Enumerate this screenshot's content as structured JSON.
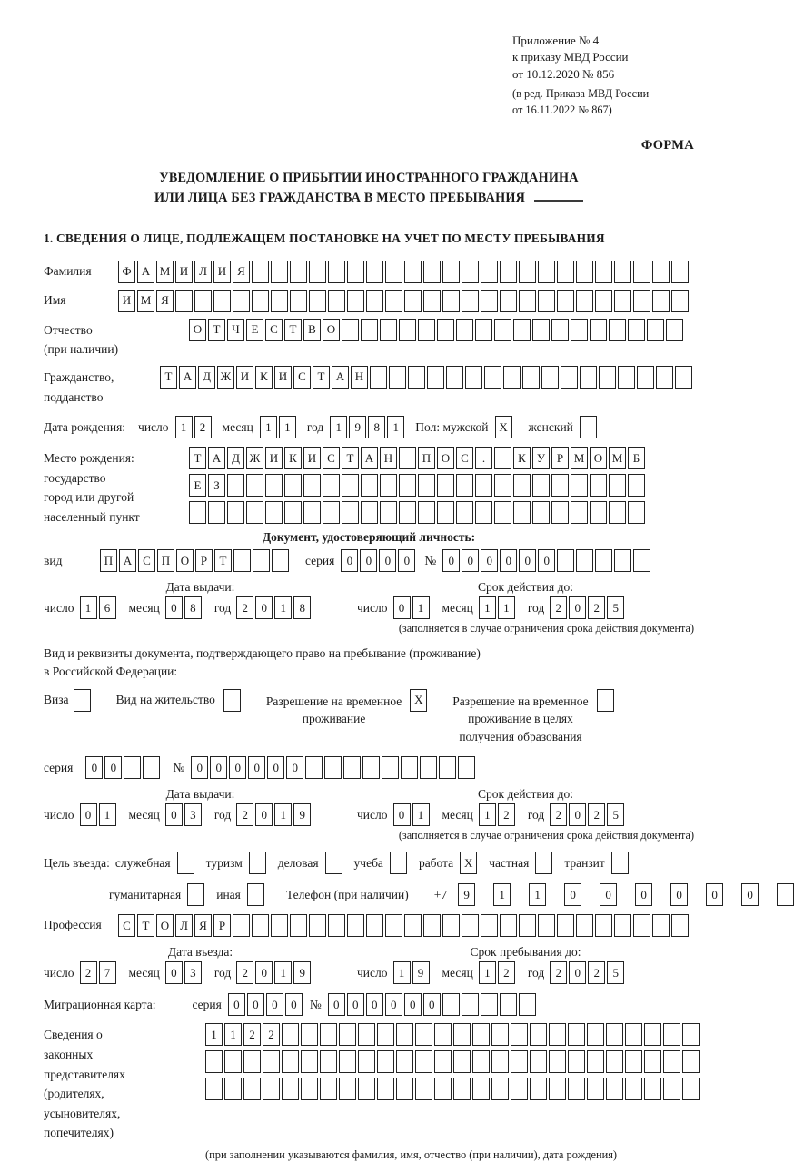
{
  "header": {
    "lines": [
      "Приложение № 4",
      "к приказу МВД России",
      "от 10.12.2020 № 856"
    ],
    "sub_lines": [
      "(в ред. Приказа МВД России",
      "от 16.11.2022 № 867)"
    ],
    "form_label": "ФОРМА"
  },
  "title": {
    "line1": "УВЕДОМЛЕНИЕ О ПРИБЫТИИ ИНОСТРАННОГО ГРАЖДАНИНА",
    "line2": "ИЛИ ЛИЦА БЕЗ ГРАЖДАНСТВА В МЕСТО ПРЕБЫВАНИЯ"
  },
  "section1_heading": "1. СВЕДЕНИЯ О ЛИЦЕ, ПОДЛЕЖАЩЕМ ПОСТАНОВКЕ НА УЧЕТ ПО МЕСТУ ПРЕБЫВАНИЯ",
  "labels": {
    "surname": "Фамилия",
    "given_name": "Имя",
    "patronymic_l1": "Отчество",
    "patronymic_l2": "(при наличии)",
    "citizenship_l1": "Гражданство,",
    "citizenship_l2": "подданство",
    "birth_date": "Дата рождения:",
    "chislo": "число",
    "mesyac": "месяц",
    "god": "год",
    "gender_male": "Пол: мужской",
    "gender_female": "женский",
    "birthplace_l1": "Место рождения:",
    "birthplace_l2": "государство",
    "birthplace_l3": "город или другой",
    "birthplace_l4": "населенный пункт",
    "doc_heading": "Документ, удостоверяющий личность:",
    "vid": "вид",
    "seriya": "серия",
    "no": "№",
    "data_vydachi": "Дата выдачи:",
    "srok_deystviya": "Срок действия до:",
    "note_restriction": "(заполняется в случае ограничения срока действия документа)",
    "right_doc_l1": "Вид и реквизиты документа, подтверждающего право на пребывание (проживание)",
    "right_doc_l2": "в Российской Федерации:",
    "purpose_prefix": "Цель въезда:",
    "telefon": "Телефон (при наличии)",
    "plus7": "+7",
    "profession": "Профессия",
    "data_vezda": "Дата въезда:",
    "srok_prebyvaniya": "Срок пребывания до:",
    "mig_karta": "Миграционная карта:",
    "reps_l1": "Сведения о",
    "reps_l2": "законных",
    "reps_l3": "представителях",
    "reps_l4": "(родителях,",
    "reps_l5": "усыновителях,",
    "reps_l6": "попечителях)",
    "reps_note": "(при заполнении указываются фамилия, имя, отчество (при наличии), дата рождения)"
  },
  "fields": {
    "surname_cells": [
      "Ф",
      "А",
      "М",
      "И",
      "Л",
      "И",
      "Я",
      "",
      "",
      "",
      "",
      "",
      "",
      "",
      "",
      "",
      "",
      "",
      "",
      "",
      "",
      "",
      "",
      "",
      "",
      "",
      "",
      "",
      "",
      ""
    ],
    "given_name_cells": [
      "И",
      "М",
      "Я",
      "",
      "",
      "",
      "",
      "",
      "",
      "",
      "",
      "",
      "",
      "",
      "",
      "",
      "",
      "",
      "",
      "",
      "",
      "",
      "",
      "",
      "",
      "",
      "",
      "",
      "",
      ""
    ],
    "patronymic_cells": [
      "О",
      "Т",
      "Ч",
      "Е",
      "С",
      "Т",
      "В",
      "О",
      "",
      "",
      "",
      "",
      "",
      "",
      "",
      "",
      "",
      "",
      "",
      "",
      "",
      "",
      "",
      "",
      "",
      ""
    ],
    "citizenship_cells": [
      "Т",
      "А",
      "Д",
      "Ж",
      "И",
      "К",
      "И",
      "С",
      "Т",
      "А",
      "Н",
      "",
      "",
      "",
      "",
      "",
      "",
      "",
      "",
      "",
      "",
      "",
      "",
      "",
      "",
      "",
      "",
      ""
    ],
    "birth": {
      "day": [
        "1",
        "2"
      ],
      "month": [
        "1",
        "1"
      ],
      "year": [
        "1",
        "9",
        "8",
        "1"
      ],
      "male": "X",
      "female": ""
    },
    "birthplace_row1": [
      "Т",
      "А",
      "Д",
      "Ж",
      "И",
      "К",
      "И",
      "С",
      "Т",
      "А",
      "Н",
      "",
      "П",
      "О",
      "С",
      ".",
      "",
      "К",
      "У",
      "Р",
      "М",
      "О",
      "М",
      "Б"
    ],
    "birthplace_row2": [
      "Е",
      "З",
      "",
      "",
      "",
      "",
      "",
      "",
      "",
      "",
      "",
      "",
      "",
      "",
      "",
      "",
      "",
      "",
      "",
      "",
      "",
      "",
      "",
      ""
    ],
    "birthplace_row3": [
      "",
      "",
      "",
      "",
      "",
      "",
      "",
      "",
      "",
      "",
      "",
      "",
      "",
      "",
      "",
      "",
      "",
      "",
      "",
      "",
      "",
      "",
      "",
      ""
    ],
    "doc": {
      "type_cells": [
        "П",
        "А",
        "С",
        "П",
        "О",
        "Р",
        "Т",
        "",
        "",
        ""
      ],
      "seriya_cells": [
        "0",
        "0",
        "0",
        "0"
      ],
      "number_cells": [
        "0",
        "0",
        "0",
        "0",
        "0",
        "0",
        "",
        "",
        "",
        "",
        ""
      ],
      "issue_day": [
        "1",
        "6"
      ],
      "issue_month": [
        "0",
        "8"
      ],
      "issue_year": [
        "2",
        "0",
        "1",
        "8"
      ],
      "valid_day": [
        "0",
        "1"
      ],
      "valid_month": [
        "1",
        "1"
      ],
      "valid_year": [
        "2",
        "0",
        "2",
        "5"
      ]
    },
    "residence": {
      "options": [
        {
          "label": "Виза",
          "value": ""
        },
        {
          "label": "Вид на жительство",
          "value": ""
        },
        {
          "lines": [
            "Разрешение на временное",
            "проживание"
          ],
          "value": "X"
        },
        {
          "lines": [
            "Разрешение на временное",
            "проживание в целях",
            "получения образования"
          ],
          "value": ""
        }
      ],
      "seriya_cells": [
        "0",
        "0",
        "",
        ""
      ],
      "number_cells": [
        "0",
        "0",
        "0",
        "0",
        "0",
        "0",
        "",
        "",
        "",
        "",
        "",
        "",
        "",
        "",
        ""
      ],
      "issue_day": [
        "0",
        "1"
      ],
      "issue_month": [
        "0",
        "3"
      ],
      "issue_year": [
        "2",
        "0",
        "1",
        "9"
      ],
      "valid_day": [
        "0",
        "1"
      ],
      "valid_month": [
        "1",
        "2"
      ],
      "valid_year": [
        "2",
        "0",
        "2",
        "5"
      ]
    },
    "purpose": {
      "items": [
        {
          "label": "служебная",
          "value": ""
        },
        {
          "label": "туризм",
          "value": ""
        },
        {
          "label": "деловая",
          "value": ""
        },
        {
          "label": "учеба",
          "value": ""
        },
        {
          "label": "работа",
          "value": "X"
        },
        {
          "label": "частная",
          "value": ""
        },
        {
          "label": "транзит",
          "value": ""
        },
        {
          "label": "гуманитарная",
          "value": ""
        },
        {
          "label": "иная",
          "value": ""
        }
      ],
      "phone_digits": [
        "9",
        "1",
        "1",
        "0",
        "0",
        "0",
        "0",
        "0",
        "0",
        ""
      ]
    },
    "profession_cells": [
      "С",
      "Т",
      "О",
      "Л",
      "Я",
      "Р",
      "",
      "",
      "",
      "",
      "",
      "",
      "",
      "",
      "",
      "",
      "",
      "",
      "",
      "",
      "",
      "",
      "",
      "",
      "",
      "",
      "",
      "",
      "",
      ""
    ],
    "entry": {
      "day": [
        "2",
        "7"
      ],
      "month": [
        "0",
        "3"
      ],
      "year": [
        "2",
        "0",
        "1",
        "9"
      ]
    },
    "stay_until": {
      "day": [
        "1",
        "9"
      ],
      "month": [
        "1",
        "2"
      ],
      "year": [
        "2",
        "0",
        "2",
        "5"
      ]
    },
    "migration_card": {
      "seriya_cells": [
        "0",
        "0",
        "0",
        "0"
      ],
      "number_cells": [
        "0",
        "0",
        "0",
        "0",
        "0",
        "0",
        "",
        "",
        "",
        "",
        ""
      ]
    },
    "representatives_row1": [
      "1",
      "1",
      "2",
      "2",
      "",
      "",
      "",
      "",
      "",
      "",
      "",
      "",
      "",
      "",
      "",
      "",
      "",
      "",
      "",
      "",
      "",
      "",
      "",
      "",
      "",
      ""
    ],
    "representatives_row2": [
      "",
      "",
      "",
      "",
      "",
      "",
      "",
      "",
      "",
      "",
      "",
      "",
      "",
      "",
      "",
      "",
      "",
      "",
      "",
      "",
      "",
      "",
      "",
      "",
      "",
      ""
    ],
    "representatives_row3": [
      "",
      "",
      "",
      "",
      "",
      "",
      "",
      "",
      "",
      "",
      "",
      "",
      "",
      "",
      "",
      "",
      "",
      "",
      "",
      "",
      "",
      "",
      "",
      "",
      "",
      ""
    ]
  }
}
